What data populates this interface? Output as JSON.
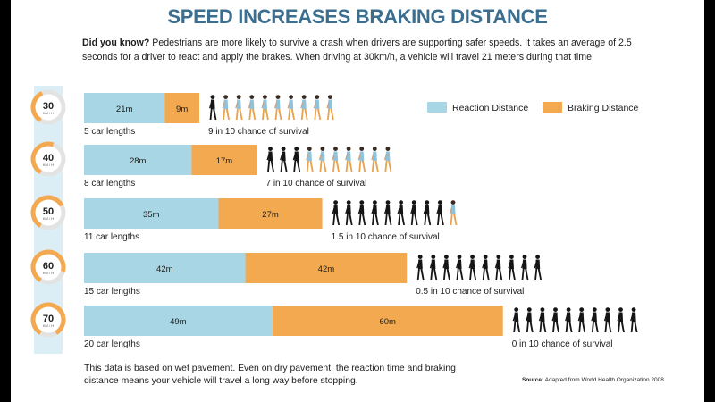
{
  "title": "SPEED INCREASES BRAKING DISTANCE",
  "intro": {
    "lead": "Did you know?",
    "text": " Pedestrians are more likely to survive a crash when drivers are supporting safer speeds. It takes an average of 2.5 seconds for a driver to react and apply the brakes. When driving at 30km/h, a vehicle will travel 21 meters during that time."
  },
  "chart_data": {
    "type": "bar",
    "orientation": "horizontal",
    "stacked": true,
    "categories": [
      "30",
      "40",
      "50",
      "60",
      "70"
    ],
    "unit_label": "KM / H",
    "series": [
      {
        "name": "Reaction Distance",
        "values": [
          21,
          28,
          35,
          42,
          49
        ],
        "labels": [
          "21m",
          "28m",
          "35m",
          "42m",
          "49m"
        ],
        "color": "#a9d6e4"
      },
      {
        "name": "Braking Distance",
        "values": [
          9,
          17,
          27,
          42,
          60
        ],
        "labels": [
          "9m",
          "17m",
          "27m",
          "42m",
          "60m"
        ],
        "color": "#f2a950"
      }
    ],
    "car_lengths": [
      "5 car lengths",
      "8 car lengths",
      "11 car lengths",
      "15 car lengths",
      "20 car lengths"
    ],
    "survival": [
      9,
      7,
      1.5,
      0.5,
      0
    ],
    "survival_labels": [
      "9 in 10 chance of survival",
      "7  in 10 chance of survival",
      "1.5 in 10 chance of survival",
      "0.5 in 10 chance of survival",
      "0 in 10 chance of survival"
    ],
    "legend_position": "top-right"
  },
  "colors": {
    "title": "#3c6f8f",
    "reaction": "#a9d6e4",
    "braking": "#f2a950",
    "gauge": "#f2a950",
    "gauge_track": "#e3e3e3",
    "side_band": "#dceef5",
    "pedestrian_dark": "#151515",
    "pedestrian_alive_shirt": "#8fc3dc",
    "pedestrian_alive_pants": "#e9a34c"
  },
  "footnote": "This data is based on wet pavement. Even on dry pavement, the reaction time and braking distance means your vehicle will travel a long way before stopping.",
  "source": {
    "label": "Source:",
    "text": " Adapted from World Health Organization 2008"
  }
}
